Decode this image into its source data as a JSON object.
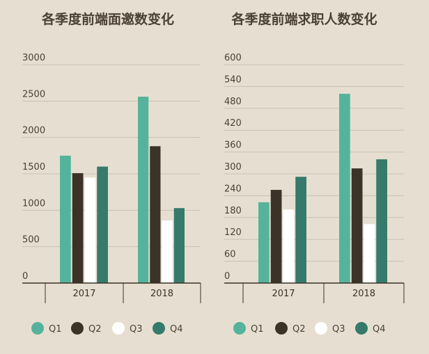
{
  "colors": {
    "background": "#e6dfd1",
    "grid": "#c9c1b2",
    "axis": "#3a3226",
    "Q1": "#55b39b",
    "Q2": "#3b3328",
    "Q3": "#ffffff",
    "Q4": "#367a6b"
  },
  "legend": [
    "Q1",
    "Q2",
    "Q3",
    "Q4"
  ],
  "chart_data": [
    {
      "type": "bar",
      "title": "各季度前端面邀数变化",
      "categories": [
        "2017",
        "2018"
      ],
      "ylim": [
        0,
        3000
      ],
      "yticks": [
        "0",
        "500",
        "1000",
        "1500",
        "2000",
        "2500",
        "3000"
      ],
      "grid": true,
      "legend_position": "bottom",
      "series": [
        {
          "name": "Q1",
          "values": [
            1750,
            2560
          ]
        },
        {
          "name": "Q2",
          "values": [
            1510,
            1880
          ]
        },
        {
          "name": "Q3",
          "values": [
            1450,
            860
          ]
        },
        {
          "name": "Q4",
          "values": [
            1600,
            1030
          ]
        }
      ]
    },
    {
      "type": "bar",
      "title": "各季度前端求职人数变化",
      "categories": [
        "2017",
        "2018"
      ],
      "ylim": [
        0,
        600
      ],
      "yticks": [
        "0",
        "60",
        "120",
        "180",
        "240",
        "300",
        "360",
        "420",
        "480",
        "540",
        "600"
      ],
      "grid": true,
      "legend_position": "bottom",
      "series": [
        {
          "name": "Q1",
          "values": [
            222,
            520
          ]
        },
        {
          "name": "Q2",
          "values": [
            256,
            315
          ]
        },
        {
          "name": "Q3",
          "values": [
            202,
            162
          ]
        },
        {
          "name": "Q4",
          "values": [
            292,
            340
          ]
        }
      ]
    }
  ]
}
